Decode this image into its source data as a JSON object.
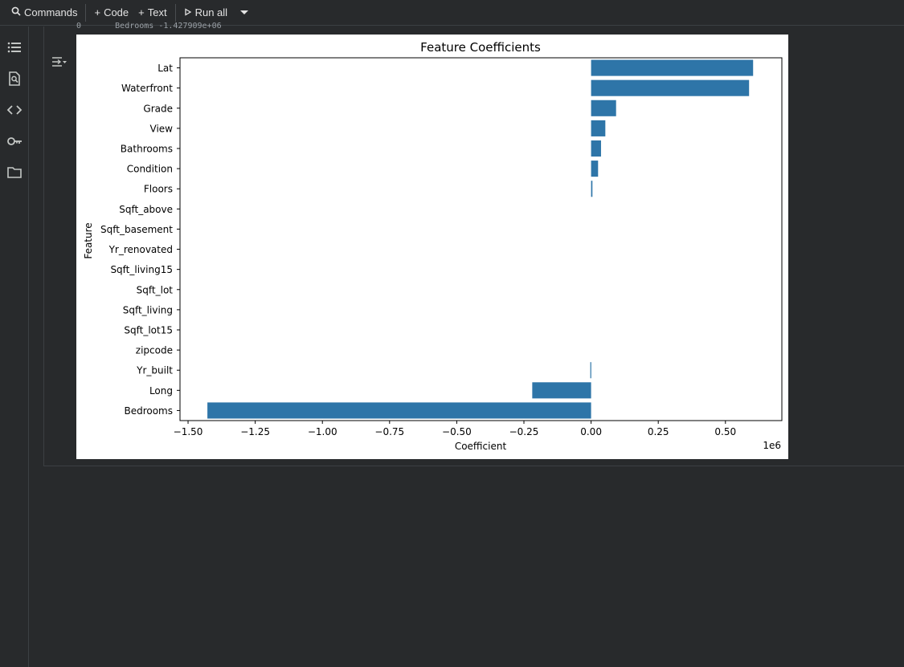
{
  "toolbar": {
    "commands_label": "Commands",
    "code_label": "Code",
    "text_label": "Text",
    "run_all_label": "Run all"
  },
  "sidebar": {
    "icons": [
      "table-of-contents-icon",
      "find-replace-icon",
      "code-snippets-icon",
      "secrets-key-icon",
      "files-folder-icon"
    ]
  },
  "output": {
    "text_line": "0       Bedrooms -1.427909e+06"
  },
  "chart_data": {
    "type": "bar",
    "orientation": "horizontal",
    "title": "Feature Coefficients",
    "xlabel": "Coefficient",
    "ylabel": "Feature",
    "x_offset_label": "1e6",
    "xlim": [
      -1.53,
      0.71
    ],
    "xticks": [
      -1.5,
      -1.25,
      -1.0,
      -0.75,
      -0.5,
      -0.25,
      0.0,
      0.25,
      0.5
    ],
    "xtick_labels": [
      "−1.50",
      "−1.25",
      "−1.00",
      "−0.75",
      "−0.50",
      "−0.25",
      "0.00",
      "0.25",
      "0.50"
    ],
    "categories": [
      "Lat",
      "Waterfront",
      "Grade",
      "View",
      "Bathrooms",
      "Condition",
      "Floors",
      "Sqft_above",
      "Sqft_basement",
      "Yr_renovated",
      "Sqft_living15",
      "Sqft_lot",
      "Sqft_living",
      "Sqft_lot15",
      "zipcode",
      "Yr_built",
      "Long",
      "Bedrooms"
    ],
    "values": [
      0.603,
      0.588,
      0.093,
      0.053,
      0.037,
      0.026,
      0.005,
      0.0,
      0.0,
      0.0,
      0.0,
      0.0,
      0.0,
      0.0,
      0.0,
      -0.003,
      -0.219,
      -1.428
    ],
    "bar_color": "#2e75a8",
    "grid": false
  }
}
